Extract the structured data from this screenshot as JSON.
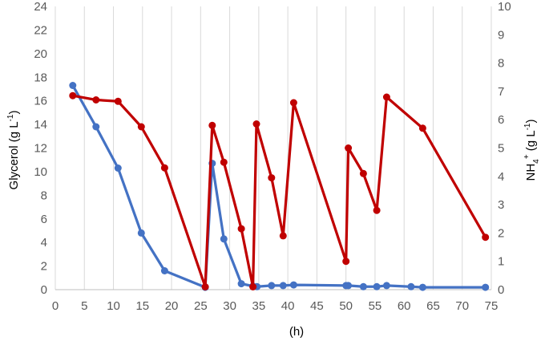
{
  "chart_data": {
    "type": "line",
    "xlabel": "(h)",
    "ylabel_left": {
      "main": "Glycerol (g L",
      "sup": "-1",
      "close": ")"
    },
    "ylabel_right": {
      "main": "NH",
      "sub": "4",
      "sup1": "+",
      "mid": " (g L",
      "sup2": "-1",
      "close": ")"
    },
    "xlim": [
      0,
      75
    ],
    "ylim_left": [
      0,
      24
    ],
    "ylim_right": [
      0,
      10
    ],
    "x_ticks": [
      0,
      5,
      10,
      15,
      20,
      25,
      30,
      35,
      40,
      45,
      50,
      55,
      60,
      65,
      70,
      75
    ],
    "y_left_ticks": [
      0,
      2,
      4,
      6,
      8,
      10,
      12,
      14,
      16,
      18,
      20,
      22,
      24
    ],
    "y_right_ticks": [
      0,
      1,
      2,
      3,
      4,
      5,
      6,
      7,
      8,
      9,
      10
    ],
    "grid": "vertical",
    "series": [
      {
        "axis": "left",
        "color": "#4472C4",
        "points": [
          [
            3,
            17.3
          ],
          [
            7,
            13.8
          ],
          [
            10.8,
            10.3
          ],
          [
            14.8,
            4.8
          ],
          [
            18.8,
            1.6
          ],
          [
            25.8,
            0.2
          ],
          [
            27,
            10.7
          ],
          [
            29,
            4.3
          ],
          [
            32,
            0.5
          ],
          [
            34,
            0.3
          ],
          [
            34.7,
            0.25
          ],
          [
            37.2,
            0.35
          ],
          [
            39.2,
            0.35
          ],
          [
            41,
            0.4
          ],
          [
            50,
            0.35
          ],
          [
            50.4,
            0.35
          ],
          [
            53,
            0.25
          ],
          [
            55.3,
            0.25
          ],
          [
            57,
            0.35
          ],
          [
            61.2,
            0.25
          ],
          [
            63.2,
            0.2
          ],
          [
            74,
            0.2
          ]
        ]
      },
      {
        "axis": "right",
        "color": "#C00000",
        "points": [
          [
            3,
            6.85
          ],
          [
            7,
            6.7
          ],
          [
            10.8,
            6.65
          ],
          [
            14.8,
            5.75
          ],
          [
            18.8,
            4.3
          ],
          [
            25.8,
            0.1
          ],
          [
            27,
            5.8
          ],
          [
            29,
            4.5
          ],
          [
            32,
            2.15
          ],
          [
            34,
            0.1
          ],
          [
            34.6,
            5.85
          ],
          [
            37.2,
            3.95
          ],
          [
            39.2,
            1.9
          ],
          [
            41,
            6.6
          ],
          [
            50,
            1
          ],
          [
            50.4,
            5
          ],
          [
            53,
            4.1
          ],
          [
            55.3,
            2.8
          ],
          [
            57,
            6.8
          ],
          [
            63.2,
            5.7
          ],
          [
            74,
            1.85
          ]
        ]
      }
    ]
  }
}
